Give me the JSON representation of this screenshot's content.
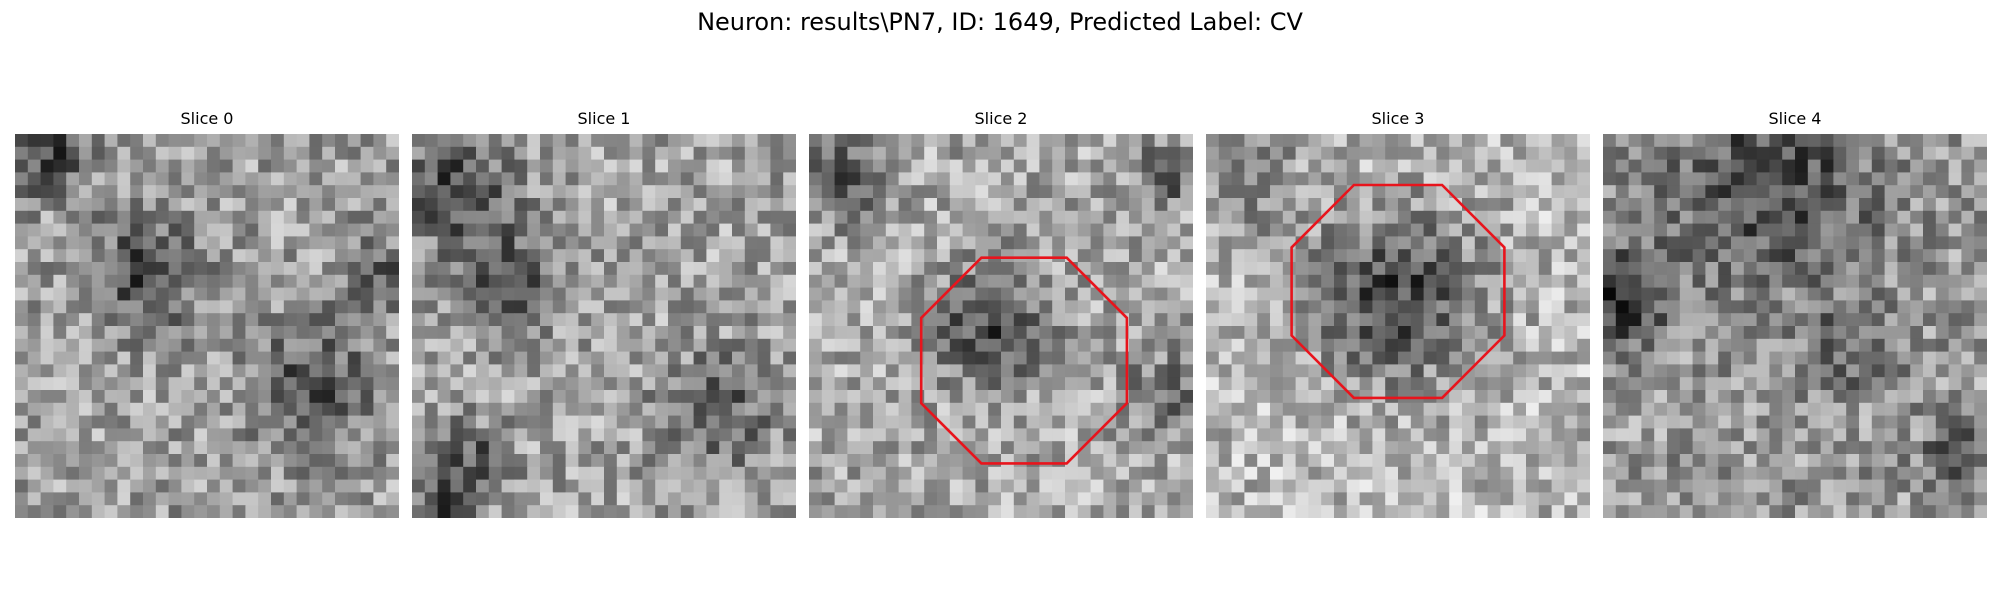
{
  "figure": {
    "title": "Neuron: results\\PN7, ID: 1649, Predicted Label: CV"
  },
  "panels": [
    {
      "title": "Slice 0",
      "outline": false,
      "outline_color": "",
      "seed": 11,
      "dark_blobs": [
        [
          0.34,
          0.36,
          0.14,
          0.9
        ],
        [
          0.77,
          0.65,
          0.16,
          0.8
        ],
        [
          0.08,
          0.05,
          0.1,
          1.0
        ],
        [
          0.95,
          0.35,
          0.09,
          0.6
        ]
      ],
      "base_level": 0.62
    },
    {
      "title": "Slice 1",
      "outline": false,
      "outline_color": "",
      "seed": 23,
      "dark_blobs": [
        [
          0.12,
          0.15,
          0.14,
          1.0
        ],
        [
          0.25,
          0.38,
          0.13,
          0.8
        ],
        [
          0.8,
          0.72,
          0.15,
          0.7
        ],
        [
          0.15,
          0.85,
          0.1,
          0.8
        ],
        [
          0.1,
          0.97,
          0.06,
          1.0
        ]
      ],
      "base_level": 0.64
    },
    {
      "title": "Slice 2",
      "outline": true,
      "outline_color": "#e8141c",
      "seed": 37,
      "dark_blobs": [
        [
          0.48,
          0.5,
          0.15,
          1.0
        ],
        [
          0.08,
          0.12,
          0.11,
          0.8
        ],
        [
          0.93,
          0.1,
          0.08,
          1.0
        ],
        [
          0.93,
          0.68,
          0.1,
          0.7
        ]
      ],
      "base_level": 0.66
    },
    {
      "title": "Slice 3",
      "outline": true,
      "outline_color": "#e8141c",
      "seed": 53,
      "dark_blobs": [
        [
          0.5,
          0.42,
          0.22,
          1.2
        ],
        [
          0.12,
          0.12,
          0.14,
          0.5
        ]
      ],
      "base_level": 0.72
    },
    {
      "title": "Slice 4",
      "outline": false,
      "outline_color": "",
      "seed": 71,
      "dark_blobs": [
        [
          0.45,
          0.12,
          0.25,
          0.9
        ],
        [
          0.05,
          0.42,
          0.13,
          1.1
        ],
        [
          0.65,
          0.55,
          0.12,
          0.6
        ],
        [
          0.92,
          0.85,
          0.08,
          0.9
        ]
      ],
      "base_level": 0.6
    }
  ]
}
